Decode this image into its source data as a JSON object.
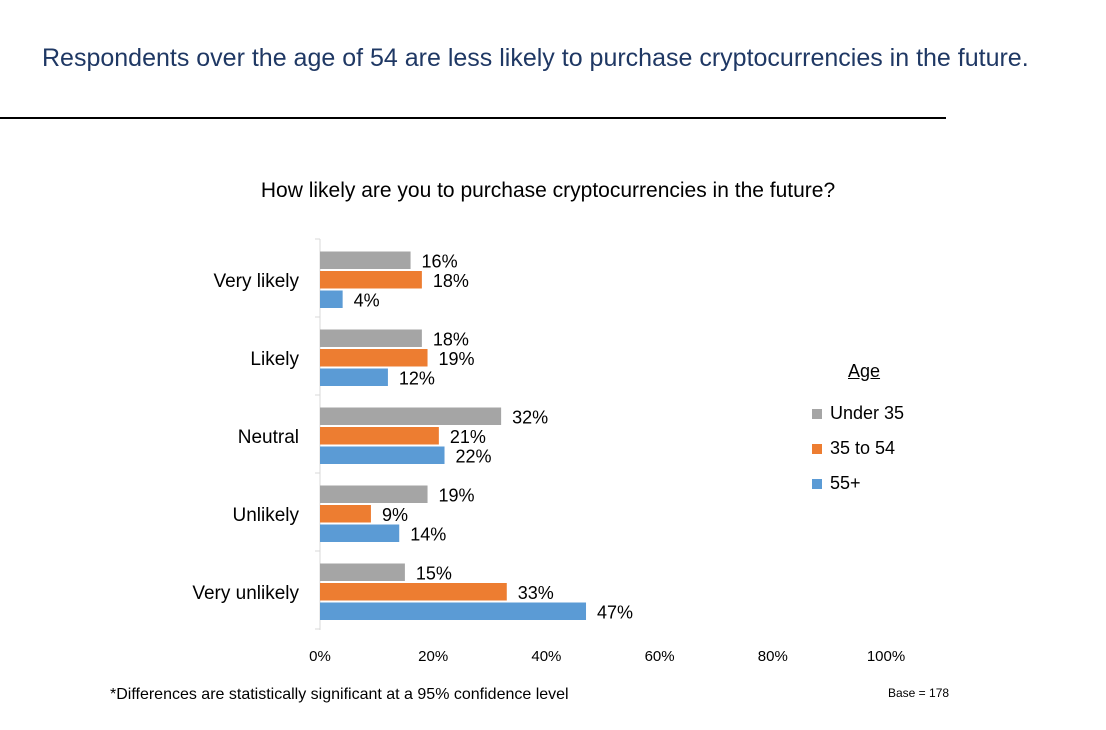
{
  "headline": "Respondents over the age of 54 are less likely to purchase cryptocurrencies in the future.",
  "footnote": "*Differences are statistically significant at a 95% confidence level",
  "base": "Base = 178",
  "chart_data": {
    "type": "bar",
    "orientation": "horizontal",
    "title": "How likely are you to purchase cryptocurrencies in the future?",
    "categories": [
      "Very likely",
      "Likely",
      "Neutral",
      "Unlikely",
      "Very unlikely"
    ],
    "series": [
      {
        "name": "Under 35",
        "color": "#a5a5a5",
        "values": [
          16,
          18,
          32,
          19,
          15
        ]
      },
      {
        "name": "35 to 54",
        "color": "#ed7d31",
        "values": [
          18,
          19,
          21,
          9,
          33
        ]
      },
      {
        "name": "55+",
        "color": "#5b9bd5",
        "values": [
          4,
          12,
          22,
          14,
          47
        ]
      }
    ],
    "value_labels": [
      [
        "16%",
        "18%",
        "32%",
        "19%",
        "15%"
      ],
      [
        "18%",
        "19%",
        "21%",
        "9%",
        "33%"
      ],
      [
        "4%",
        "12%",
        "22%",
        "14%",
        "47%"
      ]
    ],
    "xlim": [
      0,
      100
    ],
    "x_ticks": [
      0,
      20,
      40,
      60,
      80,
      100
    ],
    "x_tick_labels": [
      "0%",
      "20%",
      "40%",
      "60%",
      "80%",
      "100%"
    ],
    "legend_title": "Age",
    "legend_position": "right",
    "grid": false
  }
}
